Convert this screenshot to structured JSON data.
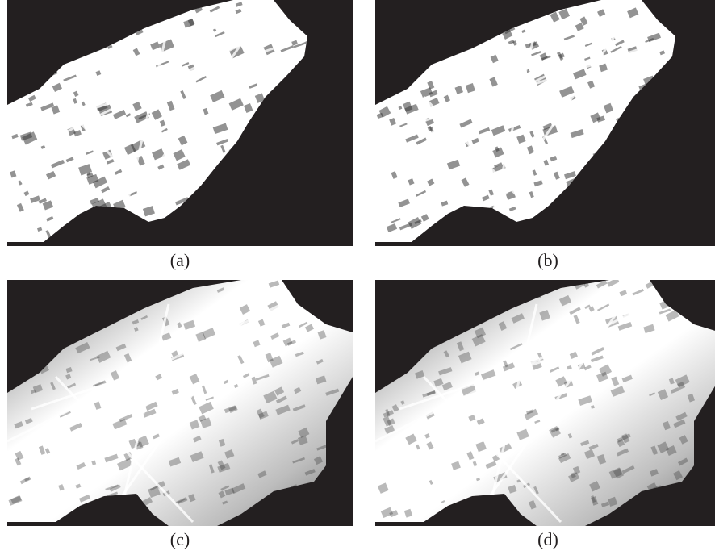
{
  "figure": {
    "panels": [
      {
        "id": "a",
        "caption": "(a)",
        "variant": "binary"
      },
      {
        "id": "b",
        "caption": "(b)",
        "variant": "binary"
      },
      {
        "id": "c",
        "caption": "(c)",
        "variant": "graded"
      },
      {
        "id": "d",
        "caption": "(d)",
        "variant": "graded"
      }
    ]
  },
  "colors": {
    "background": "#231f20",
    "map_light": "#ffffff",
    "map_mid": "#bdbdbd",
    "map_dark": "#6f6f6f",
    "building": "#3a3a3a"
  }
}
